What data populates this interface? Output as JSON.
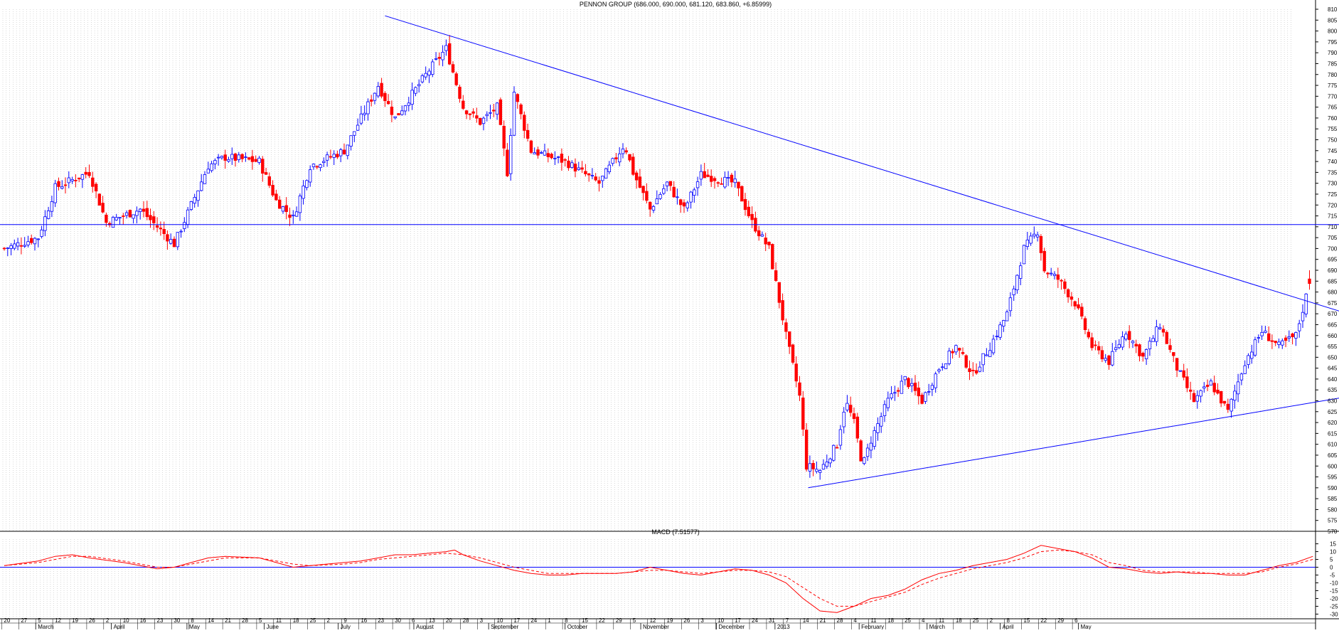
{
  "title": "PENNON GROUP (686.000, 690.000, 681.120, 683.860, +6.85999)",
  "macd_title": "MACD (7.51577)",
  "colors": {
    "up": "#0000ff",
    "down": "#ff0000",
    "trendline": "#0000ff",
    "grid": "#b0b0b0",
    "macd": "#ff0000",
    "signal": "#ff0000"
  },
  "chart_data": [
    {
      "type": "candlestick",
      "title": "PENNON GROUP (686.000, 690.000, 681.120, 683.860, +6.85999)",
      "ylim": [
        570,
        810
      ],
      "ytick_step": 5,
      "grid": true,
      "x_day_ticks": [
        "20",
        "27",
        "5",
        "12",
        "19",
        "26",
        "2",
        "10",
        "16",
        "23",
        "30",
        "8",
        "14",
        "21",
        "28",
        "5",
        "11",
        "18",
        "25",
        "2",
        "9",
        "16",
        "23",
        "30",
        "6",
        "13",
        "20",
        "28",
        "3",
        "10",
        "17",
        "24",
        "1",
        "8",
        "15",
        "22",
        "29",
        "5",
        "12",
        "19",
        "26",
        "3",
        "10",
        "17",
        "24",
        "31",
        "7",
        "14",
        "21",
        "28",
        "4",
        "11",
        "18",
        "25",
        "4",
        "11",
        "18",
        "25",
        "2",
        "8",
        "15",
        "22",
        "29",
        "6"
      ],
      "x_month_labels": [
        "March",
        "April",
        "May",
        "June",
        "July",
        "August",
        "September",
        "October",
        "November",
        "December",
        "2013",
        "February",
        "March",
        "April",
        "May"
      ],
      "last_candle": {
        "open": 686.0,
        "high": 690.0,
        "low": 681.12,
        "close": 683.86,
        "change": 6.85999
      },
      "anchors": [
        {
          "week": 0,
          "price": 700
        },
        {
          "week": 2,
          "price": 705
        },
        {
          "week": 3,
          "price": 728
        },
        {
          "week": 5,
          "price": 735
        },
        {
          "week": 6,
          "price": 712
        },
        {
          "week": 8,
          "price": 718
        },
        {
          "week": 10,
          "price": 702
        },
        {
          "week": 12,
          "price": 738
        },
        {
          "week": 13,
          "price": 742
        },
        {
          "week": 15,
          "price": 740
        },
        {
          "week": 16,
          "price": 722
        },
        {
          "week": 17,
          "price": 714
        },
        {
          "week": 18,
          "price": 738
        },
        {
          "week": 20,
          "price": 745
        },
        {
          "week": 22,
          "price": 775
        },
        {
          "week": 23,
          "price": 760
        },
        {
          "week": 25,
          "price": 782
        },
        {
          "week": 26,
          "price": 792
        },
        {
          "week": 27,
          "price": 765
        },
        {
          "week": 28,
          "price": 758
        },
        {
          "week": 29,
          "price": 765
        },
        {
          "week": 29.6,
          "price": 735
        },
        {
          "week": 30,
          "price": 772
        },
        {
          "week": 31,
          "price": 745
        },
        {
          "week": 33,
          "price": 740
        },
        {
          "week": 35,
          "price": 730
        },
        {
          "week": 36.5,
          "price": 748
        },
        {
          "week": 37,
          "price": 735
        },
        {
          "week": 38,
          "price": 718
        },
        {
          "week": 39,
          "price": 730
        },
        {
          "week": 40,
          "price": 718
        },
        {
          "week": 41,
          "price": 734
        },
        {
          "week": 43,
          "price": 730
        },
        {
          "week": 44,
          "price": 712
        },
        {
          "week": 45,
          "price": 700
        },
        {
          "week": 46,
          "price": 660
        },
        {
          "week": 46.8,
          "price": 632
        },
        {
          "week": 47.2,
          "price": 600
        },
        {
          "week": 48,
          "price": 598
        },
        {
          "week": 49,
          "price": 610
        },
        {
          "week": 49.5,
          "price": 630
        },
        {
          "week": 50,
          "price": 620
        },
        {
          "week": 50.5,
          "price": 600
        },
        {
          "week": 51,
          "price": 612
        },
        {
          "week": 52,
          "price": 630
        },
        {
          "week": 53,
          "price": 640
        },
        {
          "week": 54,
          "price": 630
        },
        {
          "week": 55,
          "price": 645
        },
        {
          "week": 56,
          "price": 655
        },
        {
          "week": 57,
          "price": 642
        },
        {
          "week": 58,
          "price": 655
        },
        {
          "week": 59,
          "price": 670
        },
        {
          "week": 60,
          "price": 700
        },
        {
          "week": 60.8,
          "price": 708
        },
        {
          "week": 61.2,
          "price": 690
        },
        {
          "week": 62,
          "price": 686
        },
        {
          "week": 63,
          "price": 675
        },
        {
          "week": 64,
          "price": 655
        },
        {
          "week": 65,
          "price": 648
        },
        {
          "week": 66,
          "price": 662
        },
        {
          "week": 67,
          "price": 650
        },
        {
          "week": 68,
          "price": 665
        },
        {
          "week": 69,
          "price": 645
        },
        {
          "week": 70,
          "price": 630
        },
        {
          "week": 71,
          "price": 638
        },
        {
          "week": 72,
          "price": 625
        },
        {
          "week": 73,
          "price": 648
        },
        {
          "week": 74,
          "price": 662
        },
        {
          "week": 75,
          "price": 655
        },
        {
          "week": 76,
          "price": 660
        },
        {
          "week": 76.6,
          "price": 678
        },
        {
          "week": 77,
          "price": 683.86
        }
      ],
      "trendlines": [
        {
          "name": "descending resistance",
          "from": {
            "week": 22.4,
            "price": 807
          },
          "to": {
            "week": 79.9,
            "price": 668
          }
        },
        {
          "name": "ascending support",
          "from": {
            "week": 47.3,
            "price": 590
          },
          "to": {
            "week": 79.9,
            "price": 633
          }
        },
        {
          "name": "horizontal",
          "from": {
            "week": -2,
            "price": 711
          },
          "to": {
            "week": 79.9,
            "price": 711
          }
        }
      ]
    },
    {
      "type": "line",
      "title": "MACD (7.51577)",
      "ylim": [
        -33,
        18
      ],
      "yticks": [
        15,
        10,
        5,
        0,
        -5,
        -10,
        -15,
        -20,
        -25,
        -30
      ],
      "zero_line": 0,
      "series": [
        {
          "style": "solid",
          "points": [
            [
              0,
              1
            ],
            [
              2,
              4
            ],
            [
              3,
              7
            ],
            [
              4,
              8
            ],
            [
              5,
              6
            ],
            [
              7,
              3
            ],
            [
              8,
              1
            ],
            [
              9,
              -1
            ],
            [
              10,
              0
            ],
            [
              11,
              3
            ],
            [
              12,
              6
            ],
            [
              13,
              7
            ],
            [
              15,
              6
            ],
            [
              16,
              3
            ],
            [
              17,
              0
            ],
            [
              18,
              1
            ],
            [
              20,
              3
            ],
            [
              21,
              4
            ],
            [
              22,
              6
            ],
            [
              23,
              8
            ],
            [
              24,
              8
            ],
            [
              25,
              9
            ],
            [
              26,
              10
            ],
            [
              26.5,
              11
            ],
            [
              27,
              8
            ],
            [
              28,
              4
            ],
            [
              29,
              1
            ],
            [
              30,
              -2
            ],
            [
              31,
              -4
            ],
            [
              32,
              -5
            ],
            [
              33,
              -5
            ],
            [
              34,
              -4
            ],
            [
              35,
              -4
            ],
            [
              36,
              -4
            ],
            [
              37,
              -3
            ],
            [
              38,
              0
            ],
            [
              39,
              -2
            ],
            [
              40,
              -4
            ],
            [
              41,
              -5
            ],
            [
              42,
              -3
            ],
            [
              43,
              -1
            ],
            [
              44,
              -2
            ],
            [
              45,
              -5
            ],
            [
              46,
              -10
            ],
            [
              47,
              -20
            ],
            [
              48,
              -28
            ],
            [
              49,
              -29
            ],
            [
              50,
              -25
            ],
            [
              51,
              -20
            ],
            [
              52,
              -18
            ],
            [
              53,
              -14
            ],
            [
              54,
              -8
            ],
            [
              55,
              -4
            ],
            [
              56,
              -2
            ],
            [
              57,
              1
            ],
            [
              58,
              3
            ],
            [
              59,
              5
            ],
            [
              60,
              9
            ],
            [
              61,
              14
            ],
            [
              62,
              12
            ],
            [
              63,
              10
            ],
            [
              64,
              6
            ],
            [
              65,
              0
            ],
            [
              66,
              -1
            ],
            [
              67,
              -3
            ],
            [
              68,
              -4
            ],
            [
              69,
              -3
            ],
            [
              70,
              -4
            ],
            [
              71,
              -4
            ],
            [
              72,
              -5
            ],
            [
              73,
              -5
            ],
            [
              74,
              -2
            ],
            [
              75,
              1
            ],
            [
              76,
              3
            ],
            [
              77,
              7
            ]
          ]
        },
        {
          "style": "dashed",
          "points": [
            [
              0,
              1
            ],
            [
              2,
              3
            ],
            [
              3,
              5
            ],
            [
              4,
              7
            ],
            [
              5,
              7
            ],
            [
              7,
              4
            ],
            [
              8,
              2
            ],
            [
              9,
              0
            ],
            [
              10,
              0
            ],
            [
              11,
              2
            ],
            [
              12,
              4
            ],
            [
              13,
              6
            ],
            [
              15,
              6
            ],
            [
              16,
              4
            ],
            [
              17,
              2
            ],
            [
              18,
              1
            ],
            [
              20,
              2
            ],
            [
              21,
              3
            ],
            [
              22,
              5
            ],
            [
              23,
              6
            ],
            [
              24,
              7
            ],
            [
              25,
              8
            ],
            [
              26,
              9
            ],
            [
              27,
              8
            ],
            [
              28,
              6
            ],
            [
              29,
              3
            ],
            [
              30,
              0
            ],
            [
              31,
              -2
            ],
            [
              32,
              -4
            ],
            [
              33,
              -4
            ],
            [
              34,
              -4
            ],
            [
              35,
              -4
            ],
            [
              36,
              -4
            ],
            [
              37,
              -3
            ],
            [
              38,
              -2
            ],
            [
              39,
              -2
            ],
            [
              40,
              -3
            ],
            [
              41,
              -4
            ],
            [
              42,
              -3
            ],
            [
              43,
              -2
            ],
            [
              44,
              -2
            ],
            [
              45,
              -3
            ],
            [
              46,
              -6
            ],
            [
              47,
              -13
            ],
            [
              48,
              -20
            ],
            [
              49,
              -25
            ],
            [
              50,
              -25
            ],
            [
              51,
              -22
            ],
            [
              52,
              -19
            ],
            [
              53,
              -16
            ],
            [
              54,
              -11
            ],
            [
              55,
              -7
            ],
            [
              56,
              -4
            ],
            [
              57,
              -1
            ],
            [
              58,
              1
            ],
            [
              59,
              3
            ],
            [
              60,
              6
            ],
            [
              61,
              10
            ],
            [
              62,
              11
            ],
            [
              63,
              10
            ],
            [
              64,
              8
            ],
            [
              65,
              3
            ],
            [
              66,
              1
            ],
            [
              67,
              -2
            ],
            [
              68,
              -3
            ],
            [
              69,
              -3
            ],
            [
              70,
              -3
            ],
            [
              71,
              -4
            ],
            [
              72,
              -4
            ],
            [
              73,
              -4
            ],
            [
              74,
              -3
            ],
            [
              75,
              0
            ],
            [
              76,
              2
            ],
            [
              77,
              5
            ]
          ]
        }
      ]
    }
  ]
}
